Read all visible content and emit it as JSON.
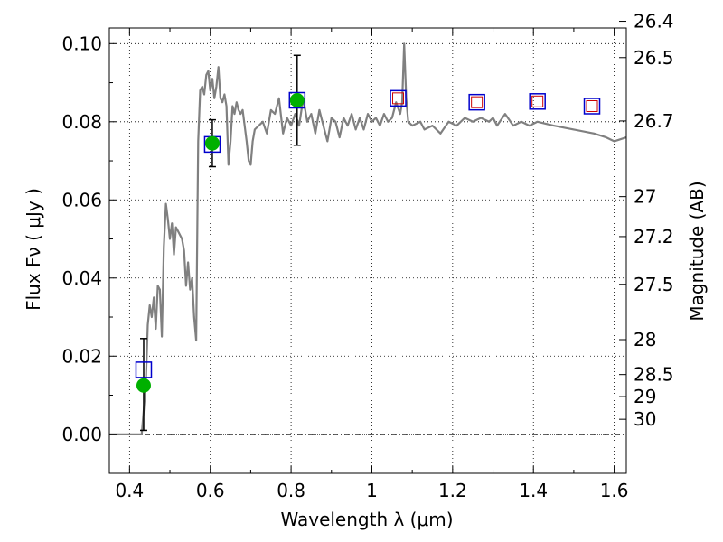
{
  "chart_data": {
    "type": "line",
    "xlabel": "Wavelength  λ (μm)",
    "ylabel": "Flux  Fν  ( μJy )",
    "y2label": "Magnitude (AB)",
    "xlim": [
      0.35,
      1.63
    ],
    "ylim": [
      -0.01,
      0.104
    ],
    "grid": true,
    "x_ticks": [
      0.4,
      0.6,
      0.8,
      1.0,
      1.2,
      1.4,
      1.6
    ],
    "x_tick_labels": [
      "0.4",
      "0.6",
      "0.8",
      "1",
      "1.2",
      "1.4",
      "1.6"
    ],
    "y_ticks": [
      0.0,
      0.02,
      0.04,
      0.06,
      0.08,
      0.1
    ],
    "y_tick_labels": [
      "0.00",
      "0.02",
      "0.04",
      "0.06",
      "0.08",
      "0.10"
    ],
    "mag_ticks": [
      26.4,
      26.5,
      26.7,
      27,
      27.2,
      27.5,
      28,
      28.5,
      29,
      30
    ],
    "mag_tick_labels": [
      "26.4",
      "26.5",
      "26.7",
      "27",
      "27.2",
      "27.5",
      "28",
      "28.5",
      "29",
      "30"
    ],
    "model_spectrum": {
      "color": "#808080",
      "points": [
        [
          0.35,
          0.0
        ],
        [
          0.42,
          0.0
        ],
        [
          0.43,
          0.0
        ],
        [
          0.44,
          0.012
        ],
        [
          0.445,
          0.028
        ],
        [
          0.45,
          0.033
        ],
        [
          0.455,
          0.03
        ],
        [
          0.46,
          0.035
        ],
        [
          0.465,
          0.027
        ],
        [
          0.47,
          0.038
        ],
        [
          0.475,
          0.037
        ],
        [
          0.48,
          0.025
        ],
        [
          0.485,
          0.048
        ],
        [
          0.49,
          0.059
        ],
        [
          0.495,
          0.055
        ],
        [
          0.5,
          0.05
        ],
        [
          0.505,
          0.054
        ],
        [
          0.51,
          0.046
        ],
        [
          0.515,
          0.053
        ],
        [
          0.52,
          0.052
        ],
        [
          0.53,
          0.05
        ],
        [
          0.535,
          0.047
        ],
        [
          0.54,
          0.038
        ],
        [
          0.545,
          0.044
        ],
        [
          0.55,
          0.037
        ],
        [
          0.555,
          0.04
        ],
        [
          0.56,
          0.03
        ],
        [
          0.565,
          0.024
        ],
        [
          0.57,
          0.075
        ],
        [
          0.575,
          0.088
        ],
        [
          0.58,
          0.089
        ],
        [
          0.585,
          0.087
        ],
        [
          0.59,
          0.092
        ],
        [
          0.595,
          0.093
        ],
        [
          0.6,
          0.088
        ],
        [
          0.605,
          0.091
        ],
        [
          0.61,
          0.086
        ],
        [
          0.615,
          0.089
        ],
        [
          0.62,
          0.094
        ],
        [
          0.625,
          0.086
        ],
        [
          0.63,
          0.085
        ],
        [
          0.635,
          0.087
        ],
        [
          0.64,
          0.084
        ],
        [
          0.645,
          0.069
        ],
        [
          0.65,
          0.075
        ],
        [
          0.655,
          0.084
        ],
        [
          0.66,
          0.082
        ],
        [
          0.665,
          0.085
        ],
        [
          0.67,
          0.083
        ],
        [
          0.675,
          0.082
        ],
        [
          0.68,
          0.083
        ],
        [
          0.69,
          0.075
        ],
        [
          0.695,
          0.07
        ],
        [
          0.7,
          0.069
        ],
        [
          0.705,
          0.075
        ],
        [
          0.71,
          0.078
        ],
        [
          0.72,
          0.079
        ],
        [
          0.73,
          0.08
        ],
        [
          0.74,
          0.077
        ],
        [
          0.75,
          0.083
        ],
        [
          0.76,
          0.082
        ],
        [
          0.77,
          0.086
        ],
        [
          0.78,
          0.077
        ],
        [
          0.79,
          0.081
        ],
        [
          0.8,
          0.079
        ],
        [
          0.81,
          0.082
        ],
        [
          0.82,
          0.079
        ],
        [
          0.83,
          0.086
        ],
        [
          0.84,
          0.08
        ],
        [
          0.85,
          0.082
        ],
        [
          0.86,
          0.077
        ],
        [
          0.87,
          0.083
        ],
        [
          0.88,
          0.079
        ],
        [
          0.89,
          0.075
        ],
        [
          0.9,
          0.081
        ],
        [
          0.91,
          0.08
        ],
        [
          0.92,
          0.076
        ],
        [
          0.93,
          0.081
        ],
        [
          0.94,
          0.079
        ],
        [
          0.95,
          0.082
        ],
        [
          0.96,
          0.078
        ],
        [
          0.97,
          0.081
        ],
        [
          0.98,
          0.078
        ],
        [
          0.99,
          0.082
        ],
        [
          1.0,
          0.08
        ],
        [
          1.01,
          0.081
        ],
        [
          1.02,
          0.079
        ],
        [
          1.03,
          0.082
        ],
        [
          1.04,
          0.08
        ],
        [
          1.05,
          0.081
        ],
        [
          1.06,
          0.085
        ],
        [
          1.07,
          0.082
        ],
        [
          1.075,
          0.085
        ],
        [
          1.08,
          0.1
        ],
        [
          1.085,
          0.086
        ],
        [
          1.09,
          0.08
        ],
        [
          1.1,
          0.079
        ],
        [
          1.12,
          0.08
        ],
        [
          1.13,
          0.078
        ],
        [
          1.15,
          0.079
        ],
        [
          1.17,
          0.077
        ],
        [
          1.19,
          0.08
        ],
        [
          1.21,
          0.079
        ],
        [
          1.23,
          0.081
        ],
        [
          1.25,
          0.08
        ],
        [
          1.27,
          0.081
        ],
        [
          1.29,
          0.08
        ],
        [
          1.3,
          0.081
        ],
        [
          1.31,
          0.079
        ],
        [
          1.33,
          0.082
        ],
        [
          1.35,
          0.079
        ],
        [
          1.37,
          0.08
        ],
        [
          1.39,
          0.079
        ],
        [
          1.41,
          0.08
        ],
        [
          1.45,
          0.079
        ],
        [
          1.5,
          0.078
        ],
        [
          1.55,
          0.077
        ],
        [
          1.58,
          0.076
        ],
        [
          1.6,
          0.075
        ],
        [
          1.63,
          0.076
        ]
      ]
    },
    "photometry_points": {
      "color": "#00b000",
      "points": [
        {
          "x": 0.435,
          "y": 0.0125,
          "yerr_low": 0.0115,
          "yerr_high": 0.012
        },
        {
          "x": 0.605,
          "y": 0.0745,
          "yerr_low": 0.006,
          "yerr_high": 0.006
        },
        {
          "x": 0.815,
          "y": 0.0855,
          "yerr_low": 0.0115,
          "yerr_high": 0.0115
        }
      ]
    },
    "model_bandpass_outer": {
      "color": "#0000cc",
      "points": [
        {
          "x": 0.435,
          "y": 0.0165
        },
        {
          "x": 0.605,
          "y": 0.0742
        },
        {
          "x": 0.815,
          "y": 0.0855
        },
        {
          "x": 1.065,
          "y": 0.086
        },
        {
          "x": 1.26,
          "y": 0.085
        },
        {
          "x": 1.41,
          "y": 0.0852
        },
        {
          "x": 1.545,
          "y": 0.084
        }
      ]
    },
    "model_bandpass_inner": {
      "color": "#cc0000",
      "points": [
        {
          "x": 1.065,
          "y": 0.086
        },
        {
          "x": 1.26,
          "y": 0.085
        },
        {
          "x": 1.41,
          "y": 0.0852
        },
        {
          "x": 1.545,
          "y": 0.084
        }
      ]
    }
  }
}
